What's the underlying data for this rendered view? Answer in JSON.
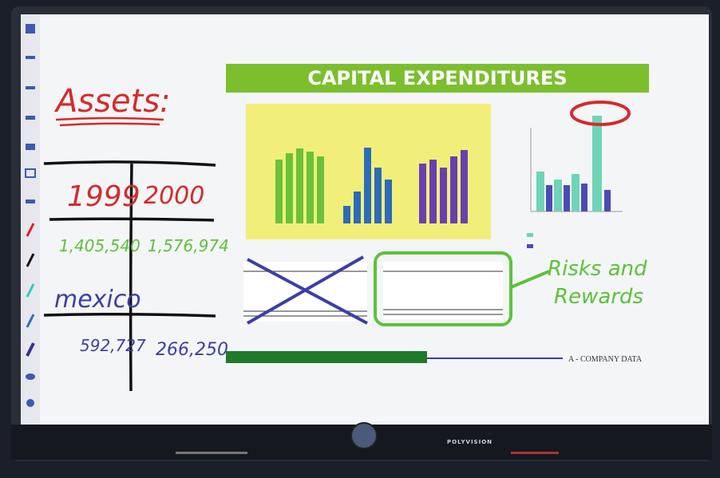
{
  "whiteboard": {
    "heading": "Assets:",
    "table": {
      "header": [
        "1999",
        "2000"
      ],
      "rows": [
        [
          "1,405,540",
          "1,576,974"
        ]
      ],
      "section": "mexico",
      "section_rows": [
        [
          "592,727",
          "266,250"
        ]
      ]
    },
    "note": [
      "Risks and",
      "Rewards"
    ]
  },
  "slide": {
    "title": "CAPITAL EXPENDITURES",
    "footer": "A - COMPANY DATA"
  },
  "device": {
    "brand": "POLYVISION"
  }
}
